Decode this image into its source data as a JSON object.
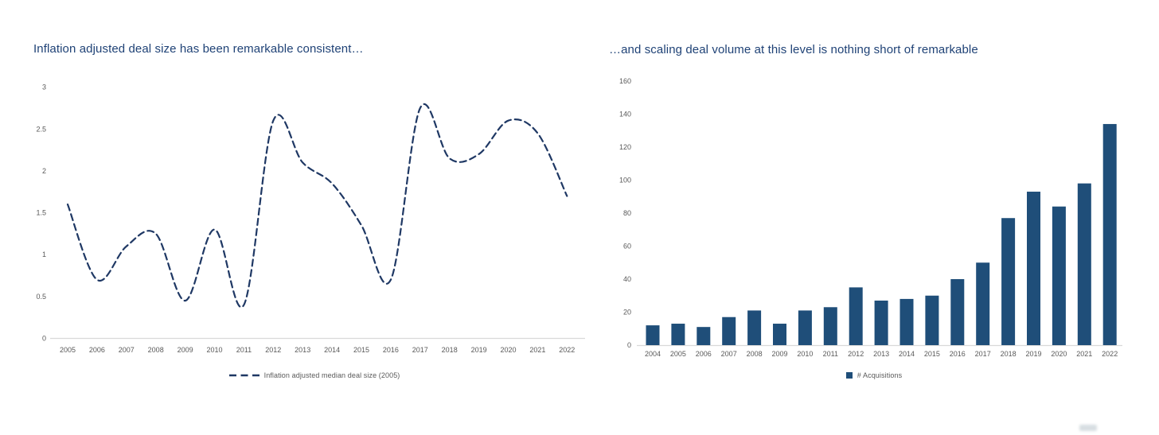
{
  "page": {
    "background": "#FFFFFF"
  },
  "chart_data": [
    {
      "type": "line",
      "title": "Inflation adjusted deal size has been remarkable consistent…",
      "x": [
        2005,
        2006,
        2007,
        2008,
        2009,
        2010,
        2011,
        2012,
        2013,
        2014,
        2015,
        2016,
        2017,
        2018,
        2019,
        2020,
        2021,
        2022
      ],
      "series": [
        {
          "name": "Inflation adjusted median deal size (2005)",
          "values": [
            1.6,
            0.7,
            1.1,
            1.25,
            0.45,
            1.3,
            0.4,
            2.6,
            2.1,
            1.85,
            1.35,
            0.7,
            2.75,
            2.15,
            2.2,
            2.6,
            2.45,
            1.7
          ]
        }
      ],
      "ylim": [
        0,
        3
      ],
      "yticks": [
        0,
        0.5,
        1,
        1.5,
        2,
        2.5,
        3
      ],
      "grid": false,
      "smooth": true,
      "line_dash": "dashed",
      "line_color": "#1F3864",
      "tick_color": "#595959",
      "axis_color": "#D9D9D9",
      "legend_position": "bottom",
      "legend": "Inflation adjusted median deal size (2005)"
    },
    {
      "type": "bar",
      "title": "…and scaling deal volume at this level is nothing short of remarkable",
      "categories": [
        2004,
        2005,
        2006,
        2007,
        2008,
        2009,
        2010,
        2011,
        2012,
        2013,
        2014,
        2015,
        2016,
        2017,
        2018,
        2019,
        2020,
        2021,
        2022
      ],
      "values": [
        12,
        13,
        11,
        17,
        21,
        13,
        21,
        23,
        35,
        27,
        28,
        30,
        40,
        50,
        77,
        93,
        84,
        98,
        134
      ],
      "ylim": [
        0,
        160
      ],
      "yticks": [
        0,
        20,
        40,
        60,
        80,
        100,
        120,
        140,
        160
      ],
      "grid": false,
      "bar_color": "#1F4E79",
      "tick_color": "#595959",
      "axis_color": "#D9D9D9",
      "legend_position": "bottom",
      "legend": "# Acquisitions"
    }
  ]
}
